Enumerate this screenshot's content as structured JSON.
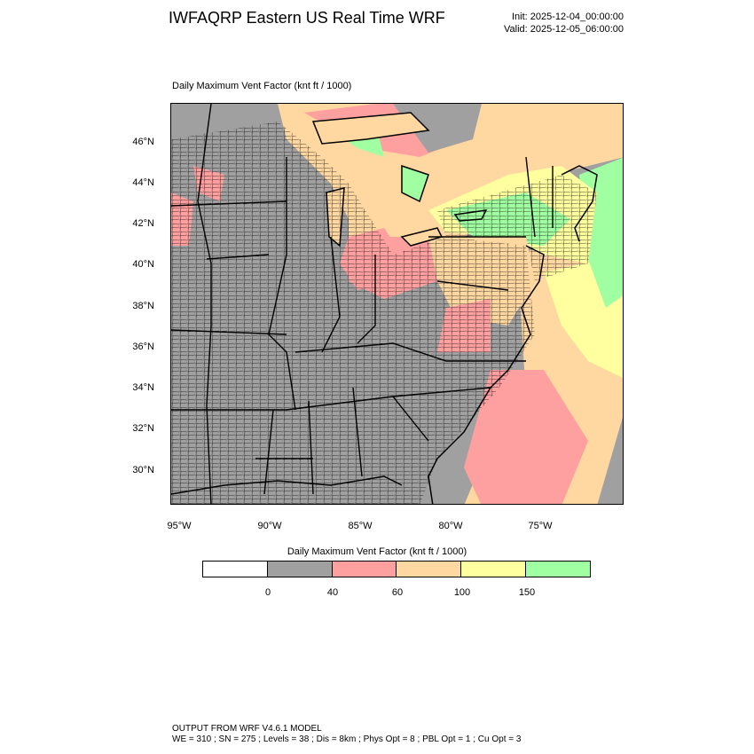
{
  "header": {
    "title": "IWFAQRP Eastern US Real Time WRF",
    "init": "Init: 2025-12-04_00:00:00",
    "valid": "Valid: 2025-12-05_06:00:00"
  },
  "plot": {
    "title": "Daily Maximum Vent Factor   (knt ft / 1000)",
    "lat_labels": [
      "46°N",
      "44°N",
      "42°N",
      "40°N",
      "38°N",
      "36°N",
      "34°N",
      "32°N",
      "30°N"
    ],
    "lon_labels": [
      "95°W",
      "90°W",
      "85°W",
      "80°W",
      "75°W"
    ]
  },
  "colorbar": {
    "title": "Daily Maximum Vent Factor  (knt ft / 1000)",
    "colors": [
      "#ffffff",
      "#a0a0a0",
      "#ffa0a0",
      "#ffd7a0",
      "#ffff9f",
      "#a0ffa0"
    ],
    "labels": [
      "0",
      "40",
      "60",
      "100",
      "150"
    ]
  },
  "footer": {
    "line1": "OUTPUT FROM WRF V4.6.1 MODEL",
    "line2": "WE = 310 ; SN = 275 ; Levels = 38 ; Dis = 8km ; Phys Opt = 8 ; PBL Opt = 1 ; Cu Opt = 3"
  }
}
